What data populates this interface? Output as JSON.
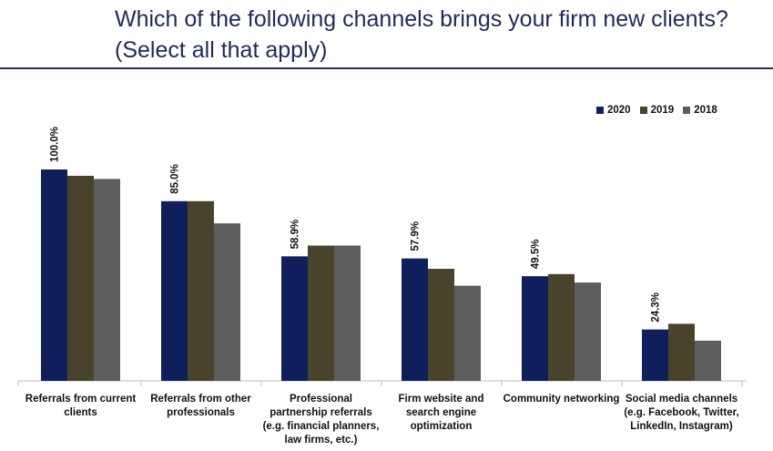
{
  "header": {
    "title": "Which of the following channels brings your firm new clients? (Select all that apply)"
  },
  "chart_data": {
    "type": "bar",
    "title": "Which of the following channels brings your firm new clients? (Select all that apply)",
    "categories": [
      "Referrals from current clients",
      "Referrals from other professionals",
      "Professional partnership referrals (e.g. financial planners, law firms, etc.)",
      "Firm website and search engine optimization",
      "Community networking",
      "Social media channels (e.g. Facebook, Twitter, LinkedIn, Instagram)"
    ],
    "series": [
      {
        "name": "2020",
        "color": "#0e1f5b",
        "values": [
          100.0,
          85.0,
          58.9,
          57.9,
          49.5,
          24.3
        ]
      },
      {
        "name": "2019",
        "color": "#4a432c",
        "values": [
          97.0,
          85.0,
          64.0,
          53.0,
          50.5,
          27.0
        ]
      },
      {
        "name": "2018",
        "color": "#5d5d5d",
        "values": [
          95.5,
          74.5,
          64.0,
          45.0,
          46.5,
          19.0
        ]
      }
    ],
    "data_labels": [
      "100.0%",
      "85.0%",
      "58.9%",
      "57.9%",
      "49.5%",
      "24.3%"
    ],
    "ylim": [
      0,
      100
    ],
    "legend_position": "top-right",
    "xlabel": "",
    "ylabel": ""
  }
}
